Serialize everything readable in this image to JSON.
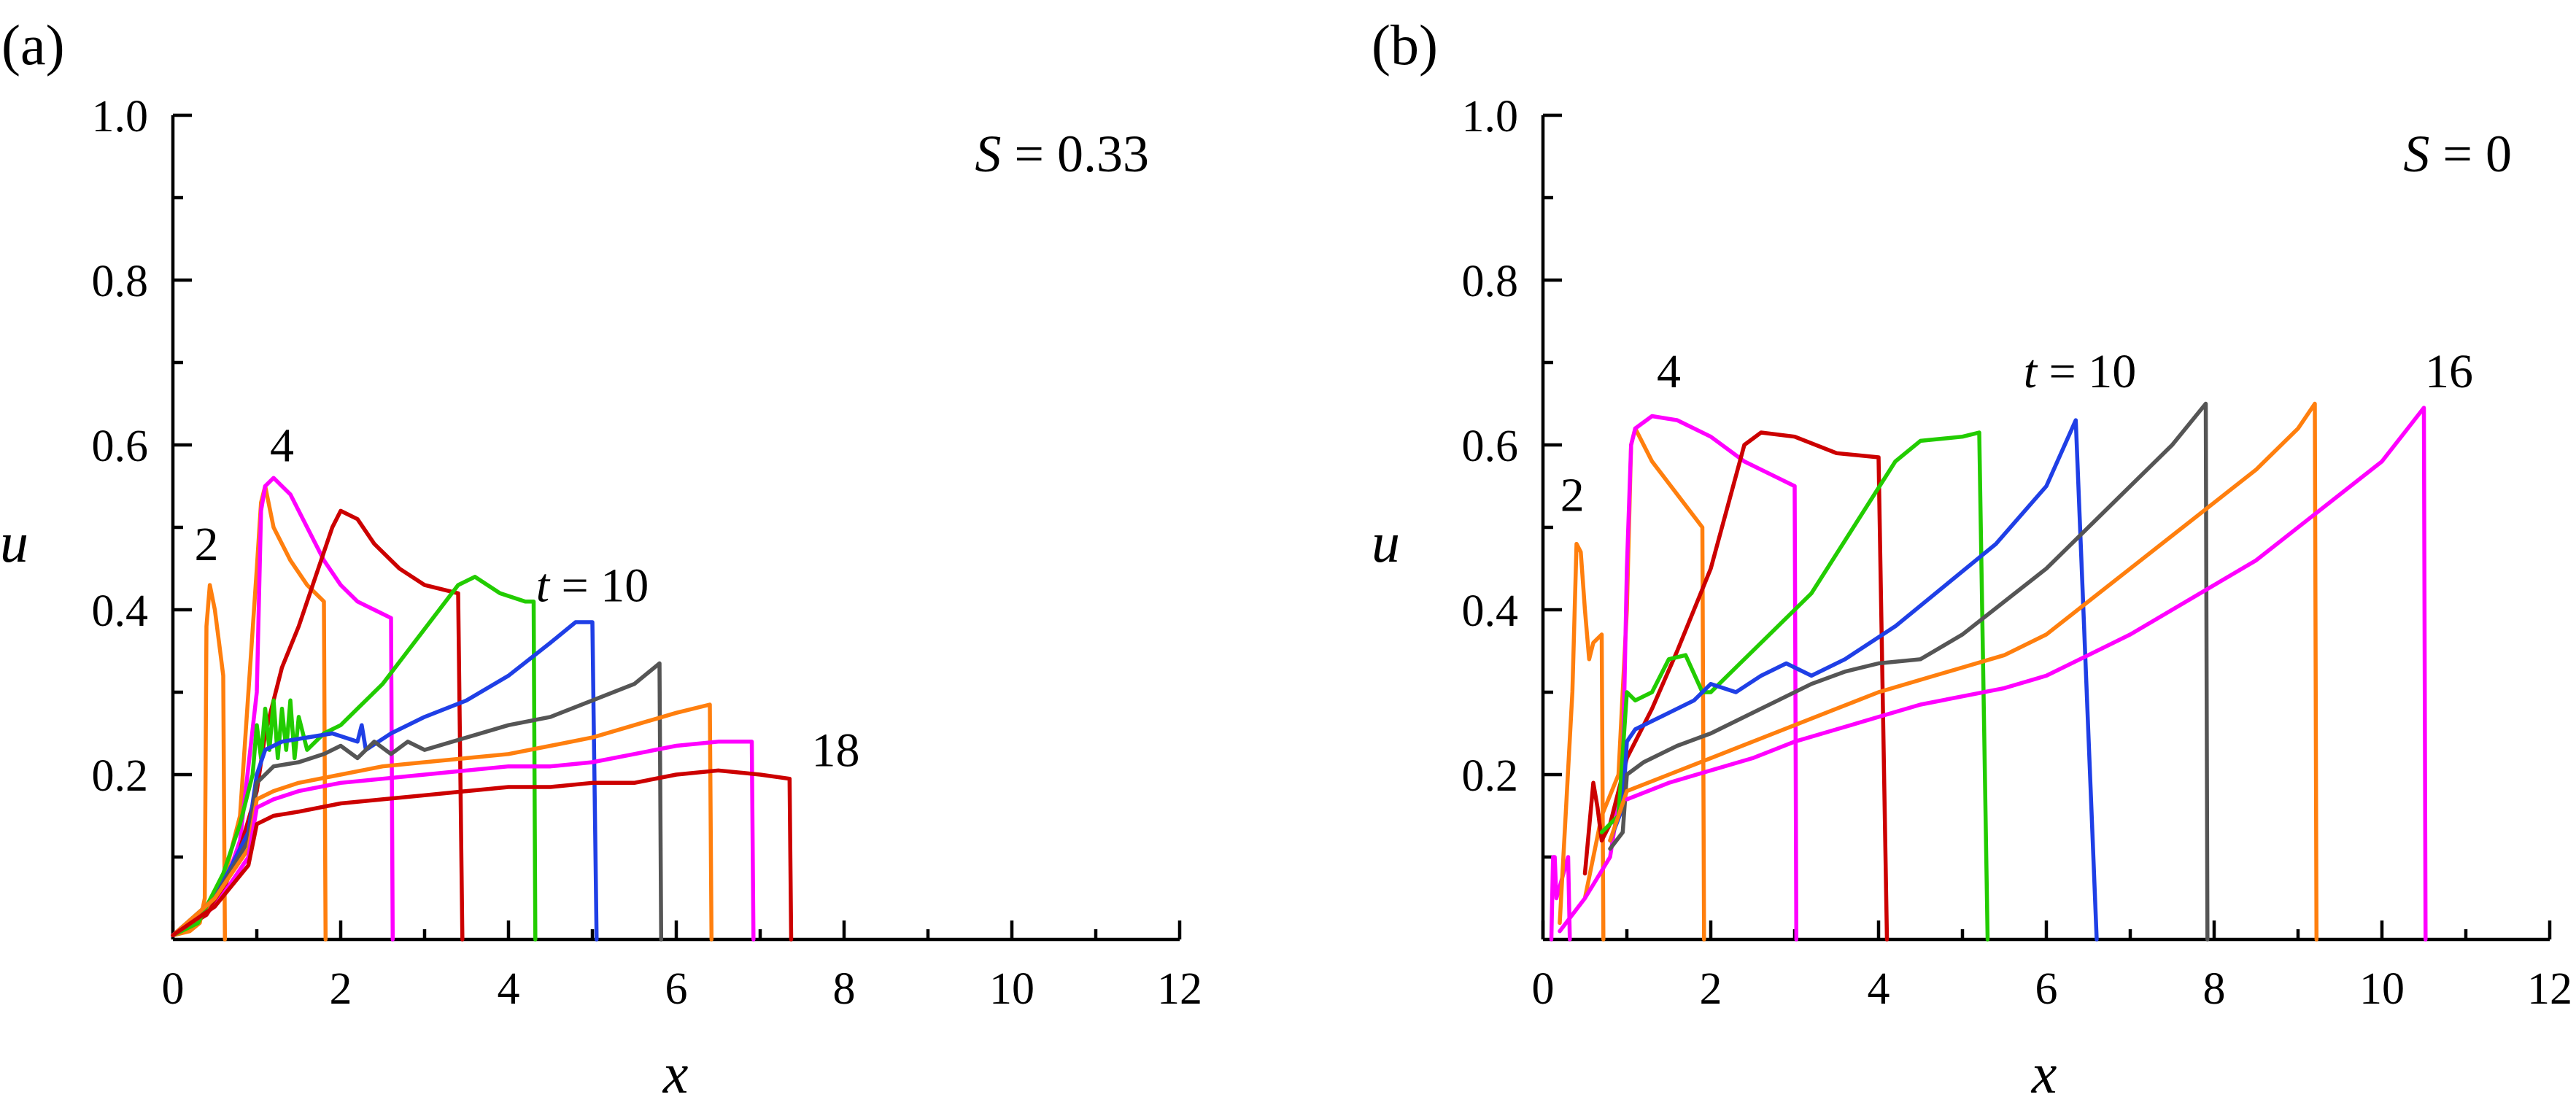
{
  "chart_data": [
    {
      "type": "line",
      "panel_label": "(a)",
      "annotation": {
        "var": "S",
        "eq": " = 0.33"
      },
      "xlabel": "x",
      "ylabel": "u",
      "xlim": [
        0,
        12
      ],
      "ylim": [
        0,
        1.0
      ],
      "xticks": [
        "0",
        "2",
        "4",
        "6",
        "8",
        "10",
        "12"
      ],
      "yticks": [
        "0.2",
        "0.4",
        "0.6",
        "0.8",
        "1.0"
      ],
      "curve_labels": [
        {
          "text": "2",
          "x": 0.4,
          "y": 0.46
        },
        {
          "text": "4",
          "x": 1.3,
          "y": 0.58
        },
        {
          "text": "t = 10",
          "x": 5.0,
          "y": 0.41
        },
        {
          "text": "18",
          "x": 7.9,
          "y": 0.21
        }
      ],
      "series": [
        {
          "color": "#ff7f0e",
          "x": [
            0,
            0.2,
            0.32,
            0.38,
            0.4,
            0.44,
            0.5,
            0.55,
            0.6,
            0.62
          ],
          "y": [
            0.005,
            0.01,
            0.02,
            0.05,
            0.38,
            0.43,
            0.4,
            0.36,
            0.32,
            0
          ]
        },
        {
          "color": "#ff7f0e",
          "x": [
            0,
            0.4,
            0.6,
            0.8,
            1.0,
            1.05,
            1.1,
            1.2,
            1.4,
            1.6,
            1.8,
            1.82
          ],
          "y": [
            0.005,
            0.03,
            0.07,
            0.15,
            0.45,
            0.53,
            0.55,
            0.5,
            0.46,
            0.43,
            0.41,
            0
          ]
        },
        {
          "color": "#ff00ff",
          "x": [
            0,
            0.4,
            0.6,
            0.8,
            1.0,
            1.05,
            1.1,
            1.2,
            1.4,
            1.6,
            1.8,
            2.0,
            2.2,
            2.4,
            2.6,
            2.62
          ],
          "y": [
            0.005,
            0.03,
            0.06,
            0.12,
            0.3,
            0.52,
            0.55,
            0.56,
            0.54,
            0.5,
            0.46,
            0.43,
            0.41,
            0.4,
            0.39,
            0
          ]
        },
        {
          "color": "#cc0000",
          "x": [
            0,
            0.4,
            0.6,
            0.8,
            1.0,
            1.1,
            1.3,
            1.5,
            1.7,
            1.9,
            2.0,
            2.2,
            2.4,
            2.7,
            3.0,
            3.4,
            3.45
          ],
          "y": [
            0.005,
            0.03,
            0.06,
            0.11,
            0.18,
            0.25,
            0.33,
            0.38,
            0.44,
            0.5,
            0.52,
            0.51,
            0.48,
            0.45,
            0.43,
            0.42,
            0
          ]
        },
        {
          "color": "#22cc00",
          "x": [
            0,
            0.3,
            0.6,
            0.8,
            0.95,
            1.0,
            1.05,
            1.1,
            1.15,
            1.2,
            1.25,
            1.3,
            1.35,
            1.4,
            1.45,
            1.5,
            1.6,
            1.8,
            2.0,
            2.2,
            2.5,
            2.8,
            3.1,
            3.4,
            3.6,
            3.9,
            4.2,
            4.3,
            4.32
          ],
          "y": [
            0.005,
            0.02,
            0.08,
            0.14,
            0.2,
            0.26,
            0.22,
            0.28,
            0.23,
            0.29,
            0.22,
            0.28,
            0.23,
            0.29,
            0.22,
            0.27,
            0.23,
            0.25,
            0.26,
            0.28,
            0.31,
            0.35,
            0.39,
            0.43,
            0.44,
            0.42,
            0.41,
            0.41,
            0
          ]
        },
        {
          "color": "#1f3fe6",
          "x": [
            0,
            0.5,
            0.9,
            1.0,
            1.1,
            1.3,
            1.6,
            1.9,
            2.2,
            2.25,
            2.3,
            2.6,
            3.0,
            3.5,
            4.0,
            4.5,
            4.8,
            5.0,
            5.05
          ],
          "y": [
            0.005,
            0.05,
            0.13,
            0.2,
            0.23,
            0.24,
            0.245,
            0.25,
            0.24,
            0.26,
            0.23,
            0.25,
            0.27,
            0.29,
            0.32,
            0.36,
            0.385,
            0.385,
            0
          ]
        },
        {
          "color": "#555555",
          "x": [
            0,
            0.5,
            0.9,
            1.0,
            1.2,
            1.5,
            1.8,
            2.0,
            2.2,
            2.4,
            2.6,
            2.8,
            3.0,
            3.5,
            4.0,
            4.5,
            5.0,
            5.5,
            5.8,
            5.82
          ],
          "y": [
            0.005,
            0.05,
            0.12,
            0.19,
            0.21,
            0.215,
            0.225,
            0.235,
            0.22,
            0.24,
            0.225,
            0.24,
            0.23,
            0.245,
            0.26,
            0.27,
            0.29,
            0.31,
            0.335,
            0
          ]
        },
        {
          "color": "#ff7f0e",
          "x": [
            0,
            0.5,
            0.9,
            1.0,
            1.2,
            1.5,
            2.0,
            2.5,
            3.0,
            3.5,
            4.0,
            4.5,
            5.0,
            5.5,
            6.0,
            6.4,
            6.42
          ],
          "y": [
            0.005,
            0.05,
            0.11,
            0.17,
            0.18,
            0.19,
            0.2,
            0.21,
            0.215,
            0.22,
            0.225,
            0.235,
            0.245,
            0.26,
            0.275,
            0.285,
            0
          ]
        },
        {
          "color": "#ff00ff",
          "x": [
            0,
            0.5,
            0.9,
            1.0,
            1.2,
            1.5,
            2.0,
            2.5,
            3.0,
            3.5,
            4.0,
            4.5,
            5.0,
            5.5,
            6.0,
            6.5,
            6.9,
            6.92
          ],
          "y": [
            0.005,
            0.04,
            0.1,
            0.16,
            0.17,
            0.18,
            0.19,
            0.195,
            0.2,
            0.205,
            0.21,
            0.21,
            0.215,
            0.225,
            0.235,
            0.24,
            0.24,
            0
          ]
        },
        {
          "color": "#cc0000",
          "x": [
            0,
            0.5,
            0.9,
            1.0,
            1.2,
            1.5,
            2.0,
            2.5,
            3.0,
            3.5,
            4.0,
            4.5,
            5.0,
            5.5,
            6.0,
            6.5,
            7.0,
            7.35,
            7.37
          ],
          "y": [
            0.005,
            0.04,
            0.09,
            0.14,
            0.15,
            0.155,
            0.165,
            0.17,
            0.175,
            0.18,
            0.185,
            0.185,
            0.19,
            0.19,
            0.2,
            0.205,
            0.2,
            0.195,
            0
          ]
        }
      ]
    },
    {
      "type": "line",
      "panel_label": "(b)",
      "annotation": {
        "var": "S",
        "eq": " = 0"
      },
      "xlabel": "x",
      "ylabel": "u",
      "xlim": [
        0,
        12
      ],
      "ylim": [
        0,
        1.0
      ],
      "xticks": [
        "0",
        "2",
        "4",
        "6",
        "8",
        "10",
        "12"
      ],
      "yticks": [
        "0.2",
        "0.4",
        "0.6",
        "0.8",
        "1.0"
      ],
      "curve_labels": [
        {
          "text": "2",
          "x": 0.35,
          "y": 0.52
        },
        {
          "text": "4",
          "x": 1.5,
          "y": 0.67
        },
        {
          "text": "t = 10",
          "x": 6.4,
          "y": 0.67
        },
        {
          "text": "16",
          "x": 10.8,
          "y": 0.67
        }
      ],
      "series": [
        {
          "color": "#ff00ff",
          "x": [
            0.1,
            0.12,
            0.14,
            0.16,
            0.3,
            0.32
          ],
          "y": [
            0,
            0.1,
            0.1,
            0.05,
            0.1,
            0
          ]
        },
        {
          "color": "#ff7f0e",
          "x": [
            0.2,
            0.35,
            0.4,
            0.45,
            0.5,
            0.55,
            0.6,
            0.7,
            0.72
          ],
          "y": [
            0.02,
            0.3,
            0.48,
            0.47,
            0.4,
            0.34,
            0.36,
            0.37,
            0
          ]
        },
        {
          "color": "#ff7f0e",
          "x": [
            0.5,
            0.7,
            0.9,
            1.0,
            1.05,
            1.1,
            1.3,
            1.6,
            1.9,
            1.92
          ],
          "y": [
            0.05,
            0.15,
            0.2,
            0.4,
            0.6,
            0.62,
            0.58,
            0.54,
            0.5,
            0
          ]
        },
        {
          "color": "#ff00ff",
          "x": [
            0.2,
            0.5,
            0.8,
            0.95,
            1.0,
            1.05,
            1.1,
            1.3,
            1.6,
            2.0,
            2.4,
            2.8,
            3.0,
            3.02
          ],
          "y": [
            0.01,
            0.05,
            0.1,
            0.2,
            0.45,
            0.6,
            0.62,
            0.635,
            0.63,
            0.61,
            0.58,
            0.56,
            0.55,
            0
          ]
        },
        {
          "color": "#cc0000",
          "x": [
            0.5,
            0.6,
            0.65,
            0.7,
            0.8,
            1.0,
            1.3,
            1.6,
            2.0,
            2.4,
            2.6,
            3.0,
            3.5,
            4.0,
            4.1
          ],
          "y": [
            0.08,
            0.19,
            0.16,
            0.12,
            0.14,
            0.22,
            0.28,
            0.35,
            0.45,
            0.6,
            0.615,
            0.61,
            0.59,
            0.585,
            0
          ]
        },
        {
          "color": "#22cc00",
          "x": [
            0.7,
            0.9,
            1.0,
            1.1,
            1.3,
            1.5,
            1.7,
            1.9,
            2.0,
            2.3,
            2.7,
            3.2,
            3.7,
            4.2,
            4.5,
            5.0,
            5.2,
            5.3
          ],
          "y": [
            0.13,
            0.15,
            0.3,
            0.29,
            0.3,
            0.34,
            0.345,
            0.3,
            0.3,
            0.33,
            0.37,
            0.42,
            0.5,
            0.58,
            0.605,
            0.61,
            0.615,
            0
          ]
        },
        {
          "color": "#1f3fe6",
          "x": [
            0.8,
            0.95,
            1.0,
            1.1,
            1.5,
            1.8,
            2.0,
            2.3,
            2.6,
            2.9,
            3.2,
            3.6,
            4.2,
            4.8,
            5.4,
            6.0,
            6.35,
            6.6
          ],
          "y": [
            0.12,
            0.16,
            0.24,
            0.255,
            0.275,
            0.29,
            0.31,
            0.3,
            0.32,
            0.335,
            0.32,
            0.34,
            0.38,
            0.43,
            0.48,
            0.55,
            0.63,
            0
          ]
        },
        {
          "color": "#555555",
          "x": [
            0.8,
            0.95,
            1.0,
            1.2,
            1.6,
            2.0,
            2.4,
            2.8,
            3.2,
            3.6,
            4.0,
            4.5,
            5.0,
            5.5,
            6.0,
            6.5,
            7.0,
            7.5,
            7.9,
            7.92
          ],
          "y": [
            0.11,
            0.13,
            0.2,
            0.215,
            0.235,
            0.25,
            0.27,
            0.29,
            0.31,
            0.325,
            0.335,
            0.34,
            0.37,
            0.41,
            0.45,
            0.5,
            0.55,
            0.6,
            0.65,
            0
          ]
        },
        {
          "color": "#ff7f0e",
          "x": [
            0.8,
            1.0,
            1.5,
            2.0,
            2.5,
            3.0,
            3.5,
            4.0,
            4.5,
            5.0,
            5.5,
            6.0,
            6.5,
            7.0,
            7.5,
            8.0,
            8.5,
            9.0,
            9.2,
            9.22
          ],
          "y": [
            0.12,
            0.18,
            0.2,
            0.22,
            0.24,
            0.26,
            0.28,
            0.3,
            0.315,
            0.33,
            0.345,
            0.37,
            0.41,
            0.45,
            0.49,
            0.53,
            0.57,
            0.62,
            0.65,
            0
          ]
        },
        {
          "color": "#ff00ff",
          "x": [
            1.0,
            1.5,
            2.0,
            2.5,
            3.0,
            3.5,
            4.0,
            4.5,
            5.0,
            5.5,
            6.0,
            6.5,
            7.0,
            7.5,
            8.0,
            8.5,
            9.0,
            9.5,
            10.0,
            10.5,
            10.52
          ],
          "y": [
            0.17,
            0.19,
            0.205,
            0.22,
            0.24,
            0.255,
            0.27,
            0.285,
            0.295,
            0.305,
            0.32,
            0.345,
            0.37,
            0.4,
            0.43,
            0.46,
            0.5,
            0.54,
            0.58,
            0.645,
            0
          ]
        }
      ]
    }
  ]
}
